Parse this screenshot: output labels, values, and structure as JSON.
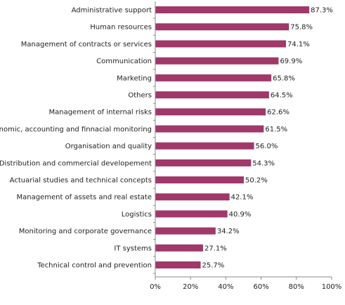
{
  "chart_data": {
    "type": "bar",
    "orientation": "horizontal",
    "title": "",
    "xlabel": "",
    "ylabel": "",
    "xlim": [
      0,
      100
    ],
    "grid": false,
    "legend": "none",
    "bar_color": "#a0386a",
    "categories": [
      "Administrative support",
      "Human resources",
      "Management of contracts or services",
      "Communication",
      "Marketing",
      "Others",
      "Management of internal risks",
      "Economic, accounting and finnacial monitoring",
      "Organisation and quality",
      "Distribution and commercial developement",
      "Actuarial studies and technical concepts",
      "Management of assets and real estate",
      "Logistics",
      "Monitoring and corporate governance",
      "IT systems",
      "Technical control and prevention"
    ],
    "values": [
      87.3,
      75.8,
      74.1,
      69.9,
      65.8,
      64.5,
      62.6,
      61.5,
      56.0,
      54.3,
      50.2,
      42.1,
      40.9,
      34.2,
      27.1,
      25.7
    ],
    "value_labels": [
      "87.3%",
      "75.8%",
      "74.1%",
      "69.9%",
      "65.8%",
      "64.5%",
      "62.6%",
      "61.5%",
      "56.0%",
      "54.3%",
      "50.2%",
      "42.1%",
      "40.9%",
      "34.2%",
      "27.1%",
      "25.7%"
    ],
    "x_ticks": [
      0,
      20,
      40,
      60,
      80,
      100
    ],
    "x_tick_labels": [
      "0%",
      "20%",
      "40%",
      "60%",
      "80%",
      "100%"
    ]
  }
}
